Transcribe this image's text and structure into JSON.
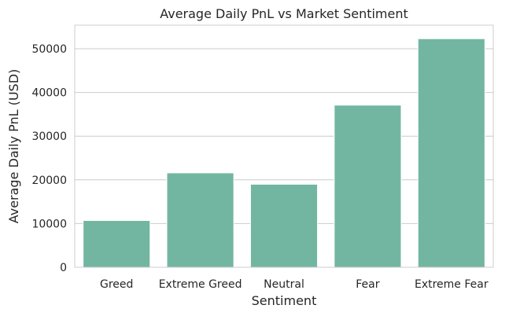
{
  "chart_data": {
    "type": "bar",
    "title": "Average Daily PnL vs Market Sentiment",
    "xlabel": "Sentiment",
    "ylabel": "Average Daily PnL (USD)",
    "categories": [
      "Greed",
      "Extreme Greed",
      "Neutral",
      "Fear",
      "Extreme Fear"
    ],
    "values": [
      10700,
      21600,
      19000,
      37100,
      52300
    ],
    "ylim": [
      0,
      55400
    ],
    "yticks": [
      0,
      10000,
      20000,
      30000,
      40000,
      50000
    ],
    "grid": "horizontal",
    "colors": {
      "bar": "#72b6a1",
      "grid": "#cccccc",
      "frame": "#cccccc",
      "text": "#262626",
      "background": "#ffffff"
    }
  }
}
